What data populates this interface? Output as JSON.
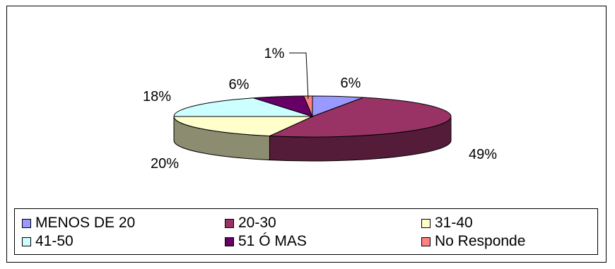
{
  "chart_data": {
    "type": "pie",
    "style": "3d-exploded-none",
    "title": "",
    "categories": [
      "MENOS DE 20",
      "20-30",
      "31-40",
      "41-50",
      "51 Ó MAS",
      "No Responde"
    ],
    "values": [
      6,
      49,
      20,
      18,
      6,
      1
    ],
    "labels": [
      "6%",
      "49%",
      "20%",
      "18%",
      "6%",
      "1%"
    ],
    "colors": [
      "#9999ff",
      "#993366",
      "#ffffcc",
      "#ccffff",
      "#660066",
      "#ff8080"
    ],
    "legend_position": "bottom"
  }
}
